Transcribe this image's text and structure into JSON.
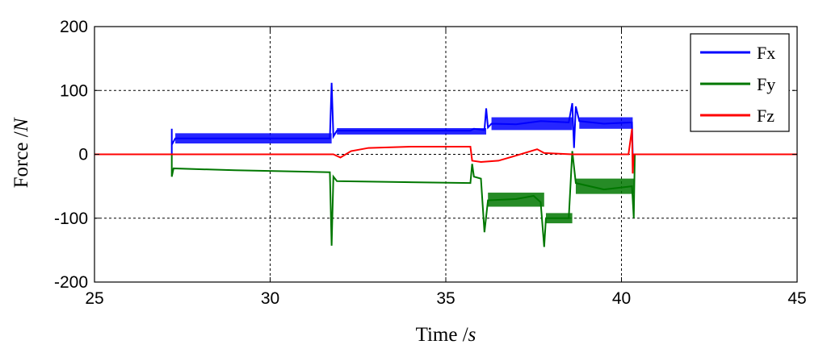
{
  "chart_data": {
    "type": "line",
    "xlabel": {
      "text": "Time /",
      "unit": "s"
    },
    "ylabel": {
      "text": "Force /",
      "unit": "N"
    },
    "xlim": [
      25,
      45
    ],
    "ylim": [
      -200,
      200
    ],
    "xticks": [
      "25",
      "30",
      "35",
      "40",
      "45"
    ],
    "yticks": [
      "200",
      "100",
      "0",
      "-100",
      "-200"
    ],
    "grid": true,
    "legend_position": "top-right",
    "series": [
      {
        "name": "Fx",
        "color": "#0000ff",
        "points": [
          [
            25,
            0
          ],
          [
            27.2,
            0
          ],
          [
            27.2,
            40
          ],
          [
            27.2,
            15
          ],
          [
            27.3,
            25
          ],
          [
            31.7,
            25
          ],
          [
            31.75,
            112
          ],
          [
            31.8,
            28
          ],
          [
            31.9,
            37
          ],
          [
            35.7,
            37
          ],
          [
            35.8,
            40
          ],
          [
            36.1,
            38
          ],
          [
            36.15,
            72
          ],
          [
            36.2,
            42
          ],
          [
            36.3,
            48
          ],
          [
            37.0,
            47
          ],
          [
            37.7,
            52
          ],
          [
            38.5,
            50
          ],
          [
            38.6,
            80
          ],
          [
            38.65,
            10
          ],
          [
            38.7,
            75
          ],
          [
            38.8,
            52
          ],
          [
            39.5,
            48
          ],
          [
            40.3,
            50
          ],
          [
            40.32,
            0
          ],
          [
            45,
            0
          ]
        ],
        "band": [
          [
            27.3,
            17,
            33
          ],
          [
            31.9,
            31,
            41
          ],
          [
            36.3,
            38,
            58
          ],
          [
            38.8,
            40,
            58
          ]
        ]
      },
      {
        "name": "Fy",
        "color": "#007700",
        "points": [
          [
            25,
            0
          ],
          [
            27.2,
            0
          ],
          [
            27.2,
            -35
          ],
          [
            27.25,
            -22
          ],
          [
            29.0,
            -25
          ],
          [
            31.7,
            -28
          ],
          [
            31.75,
            -143
          ],
          [
            31.8,
            -35
          ],
          [
            31.9,
            -42
          ],
          [
            35.7,
            -45
          ],
          [
            35.75,
            -15
          ],
          [
            35.8,
            -35
          ],
          [
            36.0,
            -38
          ],
          [
            36.1,
            -122
          ],
          [
            36.2,
            -72
          ],
          [
            37.0,
            -70
          ],
          [
            37.5,
            -65
          ],
          [
            37.7,
            -75
          ],
          [
            37.8,
            -145
          ],
          [
            37.85,
            -100
          ],
          [
            38.5,
            -100
          ],
          [
            38.6,
            5
          ],
          [
            38.7,
            -45
          ],
          [
            39.5,
            -55
          ],
          [
            40.3,
            -50
          ],
          [
            40.35,
            -100
          ],
          [
            40.38,
            0
          ],
          [
            45,
            0
          ]
        ],
        "band": [
          [
            36.2,
            -82,
            -60
          ],
          [
            37.85,
            -108,
            -92
          ],
          [
            38.7,
            -62,
            -38
          ]
        ]
      },
      {
        "name": "Fz",
        "color": "#ff0000",
        "points": [
          [
            25,
            0
          ],
          [
            31.8,
            0
          ],
          [
            32.0,
            -5
          ],
          [
            32.3,
            5
          ],
          [
            32.8,
            10
          ],
          [
            34.0,
            12
          ],
          [
            35.7,
            12
          ],
          [
            35.75,
            -10
          ],
          [
            36.0,
            -12
          ],
          [
            36.5,
            -10
          ],
          [
            37.0,
            -2
          ],
          [
            37.6,
            8
          ],
          [
            37.8,
            2
          ],
          [
            38.6,
            0
          ],
          [
            40.2,
            0
          ],
          [
            40.3,
            40
          ],
          [
            40.32,
            -30
          ],
          [
            40.35,
            0
          ],
          [
            45,
            0
          ]
        ]
      }
    ]
  }
}
